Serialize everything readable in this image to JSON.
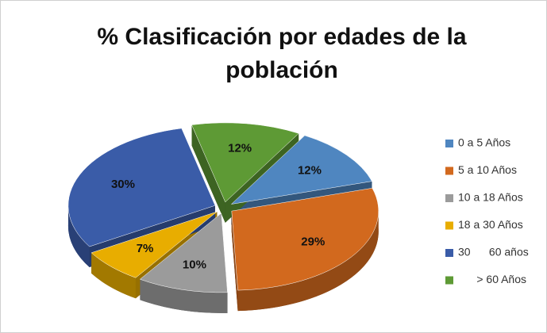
{
  "chart_data": {
    "type": "pie",
    "title": "% Clasificación por edades de la población",
    "categories": [
      "0 a 5 Años",
      "5 a 10 Años",
      "10 a 18 Años",
      "18 a 30 Años",
      "30      60 años",
      "      > 60 Años"
    ],
    "values": [
      12,
      29,
      10,
      7,
      30,
      12
    ],
    "value_labels": [
      "12%",
      "29%",
      "10%",
      "7%",
      "30%",
      "12%"
    ],
    "colors": [
      "#4f86c0",
      "#d2691e",
      "#9b9b9b",
      "#e8ad00",
      "#3a5ca8",
      "#5e9a35"
    ],
    "legend": "right"
  }
}
